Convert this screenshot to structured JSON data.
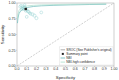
{
  "chart_data": {
    "type": "scatter",
    "xlabel": "Specificity",
    "ylabel": "Sensitivity",
    "xlim": [
      0.0,
      1.0
    ],
    "ylim": [
      0.0,
      1.0
    ],
    "xticks": [
      {
        "value": 0.0,
        "label": "0.0"
      },
      0.1,
      0.2,
      0.3,
      0.4,
      0.5,
      0.6,
      0.7,
      0.8,
      0.9,
      {
        "value": 1.0,
        "label": "1.00"
      }
    ],
    "yticks": [
      {
        "value": 0.0,
        "label": "0.00"
      },
      0.25,
      {
        "value": 0.5,
        "label": "0.50"
      },
      0.75,
      {
        "value": 1.0,
        "label": "1.00"
      }
    ],
    "grid": false,
    "legend": "lower right",
    "series": [
      {
        "type": "line",
        "line_style": "dashed",
        "color": "#bbbbbb",
        "x": [
          0,
          1
        ],
        "values": [
          0,
          1
        ]
      },
      {
        "type": "line",
        "name": "SROC (See Publisher's original)",
        "color": "#999999",
        "x": [],
        "values": []
      },
      {
        "type": "scatter",
        "name": "Summary point",
        "marker": "square",
        "color": "#222222",
        "x": [
          0.09
        ],
        "values": [
          0.905
        ]
      },
      {
        "type": "line",
        "name": "NBI",
        "color": "#66b8b8",
        "x": [
          0.005,
          0.01,
          0.02,
          0.04,
          0.07,
          0.11,
          0.17,
          0.25,
          0.38,
          0.55,
          0.75,
          0.92
        ],
        "values": [
          0.68,
          0.76,
          0.83,
          0.88,
          0.91,
          0.93,
          0.945,
          0.955,
          0.963,
          0.97,
          0.976,
          0.98
        ]
      },
      {
        "type": "line",
        "name": "NBI-high confidence",
        "color": "#aaddcc",
        "x": [
          0.005,
          0.01,
          0.02,
          0.04,
          0.07,
          0.11,
          0.17,
          0.25,
          0.38,
          0.55,
          0.75,
          0.92
        ],
        "values": [
          0.75,
          0.82,
          0.88,
          0.92,
          0.94,
          0.955,
          0.963,
          0.97,
          0.975,
          0.98,
          0.984,
          0.987
        ]
      },
      {
        "type": "scatter",
        "marker": "open-circle",
        "color": "#88cccc",
        "x": [
          0.05,
          0.08,
          0.06,
          0.09,
          0.12,
          0.04,
          0.07,
          0.1,
          0.13,
          0.16,
          0.03,
          0.11,
          0.18,
          0.06,
          0.14,
          0.08,
          0.1,
          0.2,
          0.25
        ],
        "values": [
          0.9,
          0.93,
          0.95,
          0.88,
          0.86,
          0.96,
          0.91,
          0.89,
          0.84,
          0.82,
          0.94,
          0.87,
          0.8,
          0.92,
          0.83,
          0.97,
          0.78,
          0.76,
          0.85
        ],
        "sizes": [
          4,
          5,
          3,
          5,
          4,
          3,
          6,
          4,
          3,
          5,
          3,
          4,
          5,
          3,
          4,
          3,
          4,
          5,
          4
        ]
      }
    ]
  }
}
